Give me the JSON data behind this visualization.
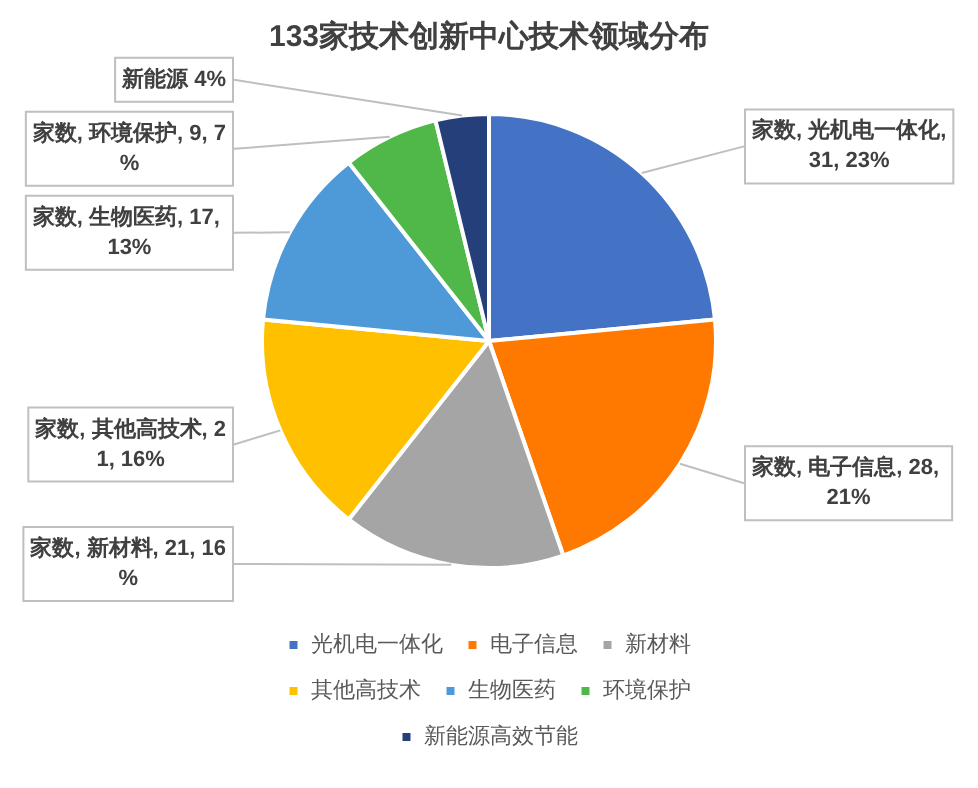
{
  "chart_data": {
    "type": "pie",
    "title": "133家技术创新中心技术领域分布",
    "categories": [
      "光机电一体化",
      "电子信息",
      "新材料",
      "其他高技术",
      "生物医药",
      "环境保护",
      "新能源高效节能"
    ],
    "values": [
      31,
      28,
      21,
      21,
      17,
      9,
      5
    ],
    "colors": [
      "#4472c4",
      "#ff7800",
      "#a5a5a5",
      "#ffc000",
      "#4e9ad8",
      "#4fb848",
      "#253f7a"
    ],
    "value_labels": [
      "家数, 光机电一体化, 31, 23%",
      "家数, 电子信息, 28, 21%",
      "家数, 新材料, 21, 16%",
      "家数, 其他高技术, 21, 16%",
      "家数, 生物医药, 17, 13%",
      "家数, 环境保护, 9, 7%",
      "新能源 4%"
    ],
    "legend": "bottom"
  }
}
